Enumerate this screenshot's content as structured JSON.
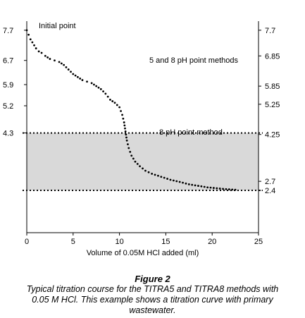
{
  "chart_data": {
    "type": "scatter",
    "xlabel": "Volume of 0.05M HCl added (ml)",
    "x_ticks": [
      0,
      5,
      10,
      15,
      20,
      25
    ],
    "xlim": [
      0,
      25
    ],
    "ylim": [
      1.0,
      8.0
    ],
    "left_y_ticks": [
      "7.7",
      "6.7",
      "5.9",
      "5.2",
      "4.3"
    ],
    "right_y_ticks": [
      "7.7",
      "6.85",
      "5.85",
      "5.25",
      "4.25",
      "2.7",
      "2.4"
    ],
    "reference_lines": [
      4.3,
      2.4
    ],
    "shaded_band": [
      2.4,
      4.3
    ],
    "annotations": [
      "Initial point",
      "5 and 8 pH point methods",
      "8 pH point method"
    ],
    "grid": false,
    "series": [
      {
        "x": [
          0,
          0.2,
          0.4,
          0.6,
          0.8,
          1.0,
          1.3,
          1.6,
          2.0,
          2.5,
          3.0,
          3.5,
          4.0,
          4.5,
          5.0,
          5.5,
          6.0,
          6.5,
          7.0,
          7.5,
          8.0,
          8.5,
          9.0,
          9.5,
          10.0,
          10.3,
          10.5,
          10.6,
          10.7,
          10.8,
          11.0,
          11.3,
          11.7,
          12.2,
          12.8,
          13.5,
          14.5,
          15.5,
          16.5,
          17.5,
          18.5,
          19.5,
          20.5,
          21.5,
          22.5
        ],
        "y": [
          7.7,
          7.55,
          7.4,
          7.3,
          7.2,
          7.1,
          7.0,
          6.95,
          6.85,
          6.75,
          6.7,
          6.65,
          6.55,
          6.4,
          6.25,
          6.15,
          6.05,
          6.0,
          5.95,
          5.85,
          5.75,
          5.6,
          5.4,
          5.3,
          5.15,
          4.9,
          4.65,
          4.45,
          4.25,
          4.05,
          3.8,
          3.55,
          3.35,
          3.2,
          3.05,
          2.95,
          2.85,
          2.75,
          2.68,
          2.6,
          2.55,
          2.5,
          2.47,
          2.44,
          2.42
        ]
      }
    ]
  },
  "caption": {
    "title": "Figure 2",
    "text": "Typical titration course for the TITRA5 and TITRA8 methods with 0.05 M HCl. This example shows a titration curve with primary wastewater."
  }
}
